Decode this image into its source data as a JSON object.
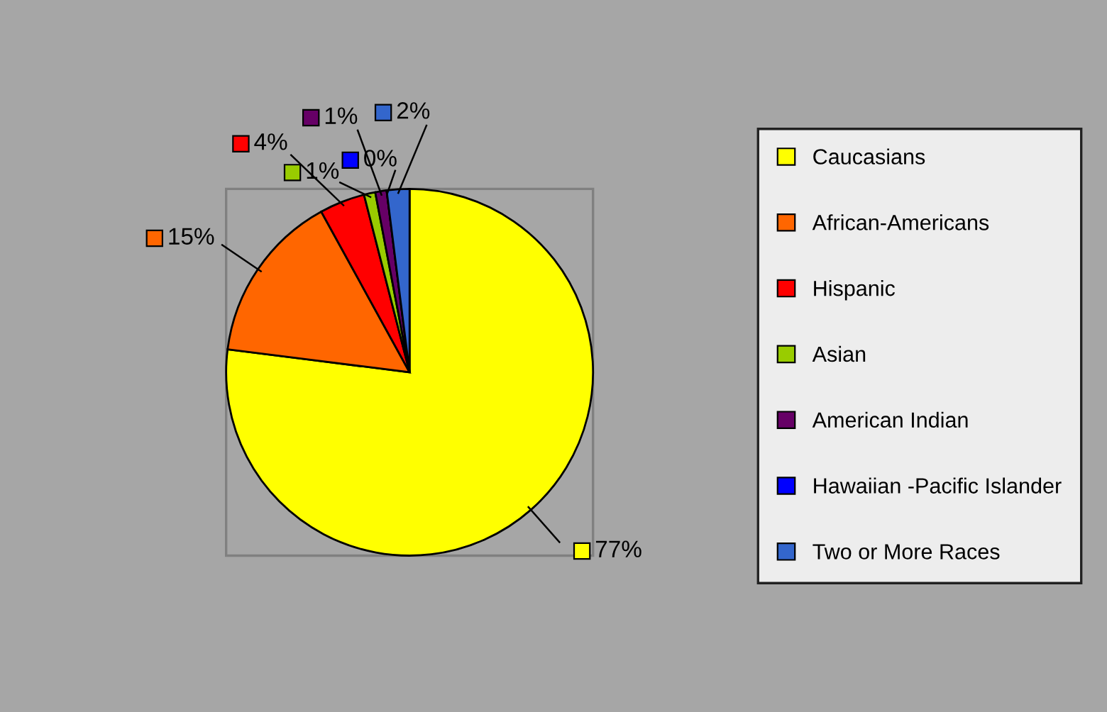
{
  "chart_data": {
    "type": "pie",
    "categories": [
      "Caucasians",
      "African-Americans",
      "Hispanic",
      "Asian",
      "American Indian",
      "Hawaiian -Pacific Islander",
      "Two or More Races"
    ],
    "values": [
      77,
      15,
      4,
      1,
      1,
      0,
      2
    ],
    "colors": [
      "#ffff00",
      "#ff6600",
      "#ff0000",
      "#99cc00",
      "#660066",
      "#0000ff",
      "#3366cc"
    ],
    "value_labels": [
      "77%",
      "15%",
      "4%",
      "1%",
      "1%",
      "0%",
      "2%"
    ],
    "legend": "right"
  }
}
